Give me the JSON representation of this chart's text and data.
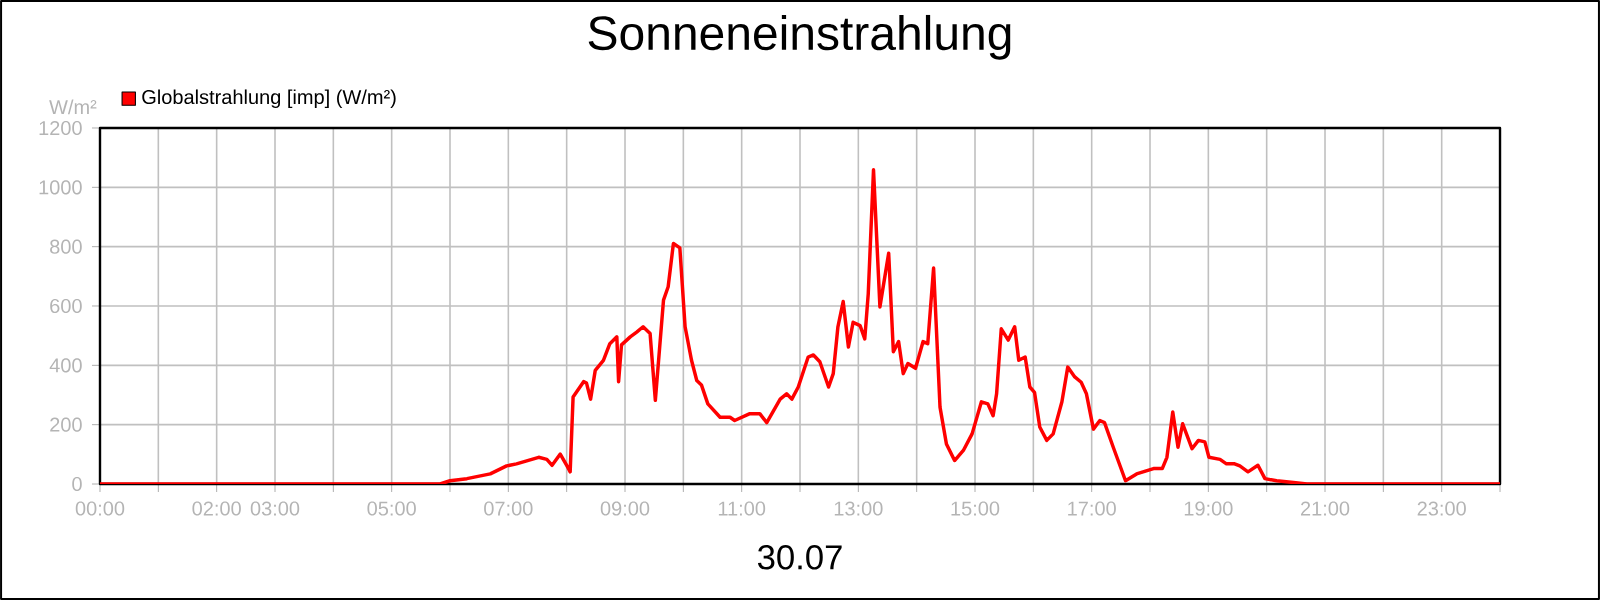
{
  "chart_data": {
    "type": "line",
    "title": "Sonneneinstrahlung",
    "xlabel": "30.07",
    "ylabel": "W/m²",
    "xlim": [
      0,
      24
    ],
    "ylim": [
      0,
      1200
    ],
    "xticks": [
      {
        "value": 0,
        "label": "00:00"
      },
      {
        "value": 1,
        "label": null
      },
      {
        "value": 2,
        "label": "02:00"
      },
      {
        "value": 3,
        "label": "03:00"
      },
      {
        "value": 4,
        "label": null
      },
      {
        "value": 5,
        "label": "05:00"
      },
      {
        "value": 6,
        "label": null
      },
      {
        "value": 7,
        "label": "07:00"
      },
      {
        "value": 8,
        "label": null
      },
      {
        "value": 9,
        "label": "09:00"
      },
      {
        "value": 10,
        "label": null
      },
      {
        "value": 11,
        "label": "11:00"
      },
      {
        "value": 12,
        "label": null
      },
      {
        "value": 13,
        "label": "13:00"
      },
      {
        "value": 14,
        "label": null
      },
      {
        "value": 15,
        "label": "15:00"
      },
      {
        "value": 16,
        "label": null
      },
      {
        "value": 17,
        "label": "17:00"
      },
      {
        "value": 18,
        "label": null
      },
      {
        "value": 19,
        "label": "19:00"
      },
      {
        "value": 20,
        "label": null
      },
      {
        "value": 21,
        "label": "21:00"
      },
      {
        "value": 22,
        "label": null
      },
      {
        "value": 23,
        "label": "23:00"
      },
      {
        "value": 24,
        "label": null
      }
    ],
    "yticks": [
      0,
      200,
      400,
      600,
      800,
      1000,
      1200
    ],
    "grid": true,
    "legend": "top left",
    "series": [
      {
        "name": "Globalstrahlung [imp] (W/m²)",
        "color": "#ff0000",
        "x": [
          0,
          5.83,
          6.0,
          6.29,
          6.69,
          6.97,
          7.14,
          7.52,
          7.66,
          7.75,
          7.89,
          8.02,
          8.06,
          8.11,
          8.29,
          8.34,
          8.41,
          8.49,
          8.63,
          8.74,
          8.86,
          8.89,
          8.94,
          9.09,
          9.2,
          9.31,
          9.43,
          9.52,
          9.66,
          9.74,
          9.83,
          9.94,
          10.03,
          10.14,
          10.23,
          10.31,
          10.42,
          10.63,
          10.8,
          10.88,
          11.14,
          11.31,
          11.43,
          11.66,
          11.77,
          11.86,
          11.97,
          12.14,
          12.23,
          12.34,
          12.49,
          12.57,
          12.65,
          12.74,
          12.83,
          12.91,
          13.03,
          13.11,
          13.17,
          13.26,
          13.37,
          13.52,
          13.6,
          13.69,
          13.77,
          13.85,
          13.98,
          14.11,
          14.19,
          14.29,
          14.4,
          14.51,
          14.65,
          14.8,
          14.95,
          15.11,
          15.22,
          15.31,
          15.37,
          15.45,
          15.57,
          15.68,
          15.75,
          15.86,
          15.94,
          16.02,
          16.11,
          16.23,
          16.34,
          16.49,
          16.59,
          16.71,
          16.82,
          16.91,
          17.03,
          17.14,
          17.22,
          17.37,
          17.58,
          17.77,
          18.06,
          18.21,
          18.29,
          18.39,
          18.48,
          18.56,
          18.72,
          18.83,
          18.94,
          19.01,
          19.2,
          19.31,
          19.45,
          19.54,
          19.68,
          19.85,
          19.97,
          20.17,
          20.46,
          20.69,
          24.0
        ],
        "values": [
          0,
          0,
          11,
          18,
          34,
          61,
          68,
          90,
          83,
          63,
          101,
          56,
          41,
          293,
          345,
          340,
          286,
          383,
          417,
          473,
          496,
          345,
          469,
          496,
          512,
          530,
          507,
          282,
          620,
          665,
          811,
          796,
          530,
          417,
          349,
          334,
          270,
          225,
          225,
          214,
          237,
          237,
          207,
          286,
          304,
          286,
          327,
          428,
          435,
          412,
          327,
          372,
          530,
          615,
          462,
          545,
          534,
          489,
          642,
          1059,
          597,
          778,
          446,
          480,
          372,
          406,
          390,
          480,
          473,
          728,
          259,
          135,
          79,
          113,
          169,
          277,
          270,
          230,
          304,
          523,
          485,
          530,
          417,
          428,
          327,
          309,
          192,
          147,
          169,
          277,
          394,
          361,
          343,
          304,
          185,
          214,
          207,
          124,
          11,
          34,
          52,
          52,
          90,
          243,
          124,
          203,
          119,
          147,
          142,
          90,
          83,
          68,
          68,
          61,
          41,
          63,
          18,
          11,
          5,
          0,
          0
        ]
      }
    ]
  }
}
